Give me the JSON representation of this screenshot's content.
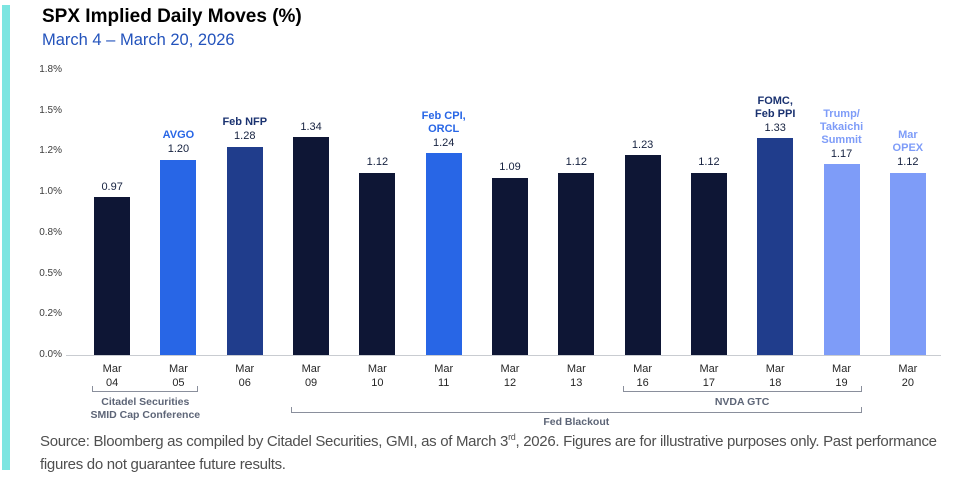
{
  "header": {
    "title": "SPX Implied Daily Moves (%)",
    "subtitle": "March 4 – March 20, 2026"
  },
  "chart_data": {
    "type": "bar",
    "title": "SPX Implied Daily Moves (%)",
    "subtitle": "March 4 – March 20, 2026",
    "ylim": [
      0,
      1.75
    ],
    "grid": false,
    "y_ticks": [
      {
        "value": 1.75,
        "label": "1.8%"
      },
      {
        "value": 1.5,
        "label": "1.5%"
      },
      {
        "value": 1.25,
        "label": "1.2%"
      },
      {
        "value": 1.0,
        "label": "1.0%"
      },
      {
        "value": 0.75,
        "label": "0.8%"
      },
      {
        "value": 0.5,
        "label": "0.5%"
      },
      {
        "value": 0.25,
        "label": "0.2%"
      },
      {
        "value": 0.0,
        "label": "0.0%"
      }
    ],
    "bars": [
      {
        "x_label": [
          "Mar",
          "04"
        ],
        "value": 0.97,
        "label": "0.97",
        "color_key": "dark"
      },
      {
        "x_label": [
          "Mar",
          "05"
        ],
        "value": 1.2,
        "label": "1.20",
        "color_key": "bright",
        "annotation": {
          "lines": [
            "AVGO"
          ],
          "color_key": "bright"
        }
      },
      {
        "x_label": [
          "Mar",
          "06"
        ],
        "value": 1.28,
        "label": "1.28",
        "color_key": "medium",
        "annotation": {
          "lines": [
            "Feb NFP"
          ],
          "color_key": "navy"
        }
      },
      {
        "x_label": [
          "Mar",
          "09"
        ],
        "value": 1.34,
        "label": "1.34",
        "color_key": "dark"
      },
      {
        "x_label": [
          "Mar",
          "10"
        ],
        "value": 1.12,
        "label": "1.12",
        "color_key": "dark"
      },
      {
        "x_label": [
          "Mar",
          "11"
        ],
        "value": 1.24,
        "label": "1.24",
        "color_key": "bright",
        "annotation": {
          "lines": [
            "Feb CPI,",
            "ORCL"
          ],
          "color_key": "bright"
        }
      },
      {
        "x_label": [
          "Mar",
          "12"
        ],
        "value": 1.09,
        "label": "1.09",
        "color_key": "dark"
      },
      {
        "x_label": [
          "Mar",
          "13"
        ],
        "value": 1.12,
        "label": "1.12",
        "color_key": "dark"
      },
      {
        "x_label": [
          "Mar",
          "16"
        ],
        "value": 1.23,
        "label": "1.23",
        "color_key": "dark"
      },
      {
        "x_label": [
          "Mar",
          "17"
        ],
        "value": 1.12,
        "label": "1.12",
        "color_key": "dark"
      },
      {
        "x_label": [
          "Mar",
          "18"
        ],
        "value": 1.33,
        "label": "1.33",
        "color_key": "medium",
        "annotation": {
          "lines": [
            "FOMC,",
            "Feb PPI"
          ],
          "color_key": "navy"
        }
      },
      {
        "x_label": [
          "Mar",
          "19"
        ],
        "value": 1.17,
        "label": "1.17",
        "color_key": "light",
        "annotation": {
          "lines": [
            "Trump/",
            "Takaichi",
            "Summit"
          ],
          "color_key": "light"
        }
      },
      {
        "x_label": [
          "Mar",
          "20"
        ],
        "value": 1.12,
        "label": "1.12",
        "color_key": "light",
        "annotation": {
          "lines": [
            "Mar",
            "OPEX"
          ],
          "color_key": "light"
        }
      }
    ],
    "brackets": [
      {
        "label": "Citadel Securities\nSMID Cap Conference",
        "from_index": 0,
        "to_index": 1,
        "row": 0
      },
      {
        "label": "NVDA GTC",
        "from_index": 8,
        "to_index": 11,
        "row": 0
      },
      {
        "label": "Fed Blackout",
        "from_index": 3,
        "to_index": 11,
        "row": 1
      }
    ],
    "colors": {
      "dark": "#0E1635",
      "bright": "#2866E6",
      "medium": "#203D8C",
      "light": "#7E9CF8",
      "navy": "#1A3270",
      "value_label": "#15213F",
      "bracket": "#8A8F9C",
      "bracket_label": "#5D6577",
      "axis_line": "#C9CCD1",
      "tick_label": "#3C3C3C",
      "accent_stripe": "#7CE5E1",
      "subtitle": "#2353BC"
    }
  },
  "footer": {
    "source_text_before_sup": "Source: Bloomberg as compiled by Citadel Securities, GMI, as of March 3",
    "source_sup": "rd",
    "source_text_after_sup": ", 2026. Figures are for illustrative purposes only. Past performance figures do not guarantee future results."
  }
}
